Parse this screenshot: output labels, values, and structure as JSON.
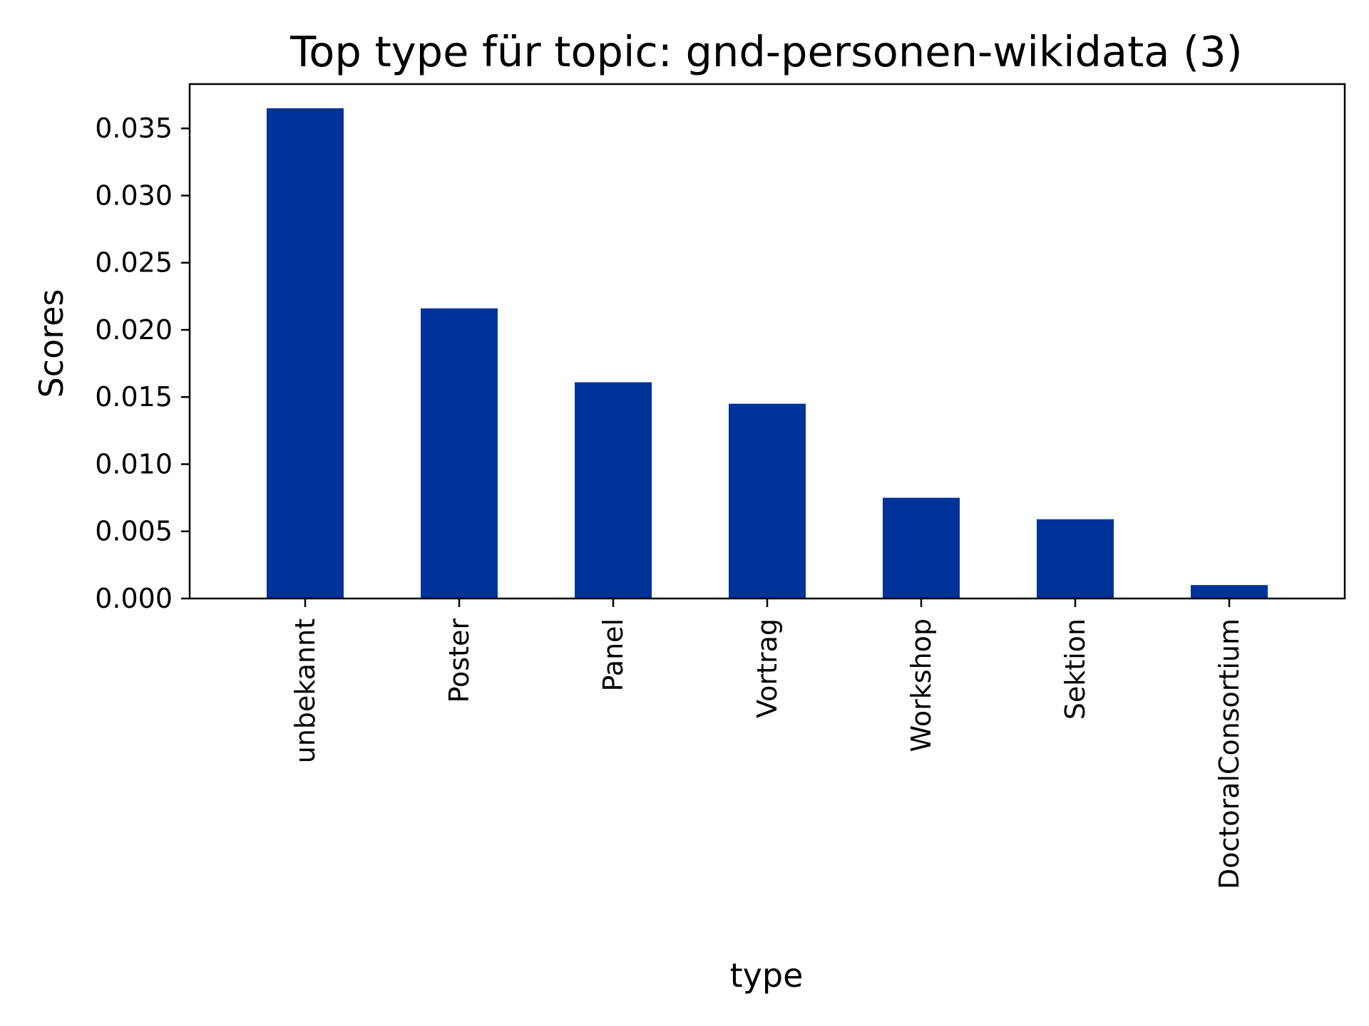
{
  "chart_data": {
    "type": "bar",
    "title": "Top type für topic: gnd-personen-wikidata (3)",
    "xlabel": "type",
    "ylabel": "Scores",
    "categories": [
      "unbekannt",
      "Poster",
      "Panel",
      "Vortrag",
      "Workshop",
      "Sektion",
      "DoctoralConsortium"
    ],
    "values": [
      0.0365,
      0.0216,
      0.0161,
      0.0145,
      0.0075,
      0.0059,
      0.001
    ],
    "ylim": [
      0,
      0.0383
    ],
    "yticks": [
      0.0,
      0.005,
      0.01,
      0.015,
      0.02,
      0.025,
      0.03,
      0.035
    ],
    "ytick_labels": [
      "0.000",
      "0.005",
      "0.010",
      "0.015",
      "0.020",
      "0.025",
      "0.030",
      "0.035"
    ],
    "grid": false,
    "legend": "none",
    "bar_color": "#003399"
  }
}
